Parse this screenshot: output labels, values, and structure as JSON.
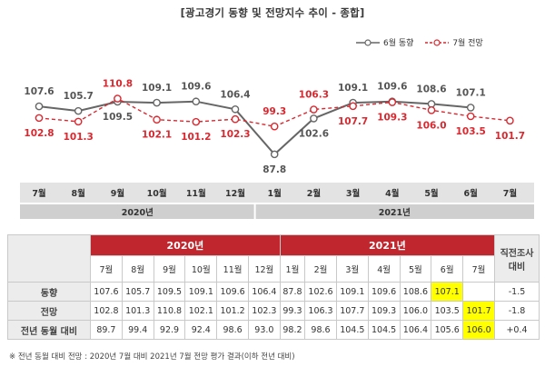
{
  "title": "[광고경기 동향 및 전망지수 추이 - 종합]",
  "legend": {
    "actual": "6월 동향",
    "forecast": "7월 전망",
    "actual_color": "#666666",
    "forecast_color": "#d9282f"
  },
  "chart_data": {
    "type": "line",
    "categories": [
      "7월",
      "8월",
      "9월",
      "10월",
      "11월",
      "12월",
      "1월",
      "2월",
      "3월",
      "4월",
      "5월",
      "6월",
      "7월"
    ],
    "year_groups": [
      {
        "label": "2020년",
        "span": 6
      },
      {
        "label": "2021년",
        "span": 7
      }
    ],
    "series": [
      {
        "name": "6월 동향",
        "color": "#666666",
        "style": "solid",
        "values": [
          107.6,
          105.7,
          109.5,
          109.1,
          109.6,
          106.4,
          87.8,
          102.6,
          109.1,
          109.6,
          108.6,
          107.1,
          null
        ]
      },
      {
        "name": "7월 전망",
        "color": "#d9282f",
        "style": "dashed",
        "values": [
          102.8,
          101.3,
          110.8,
          102.1,
          101.2,
          102.3,
          99.3,
          106.3,
          107.7,
          109.3,
          106.0,
          103.5,
          101.7
        ]
      }
    ],
    "labels_above": [
      [
        true,
        true,
        false,
        true,
        true,
        true,
        false,
        false,
        true,
        true,
        true,
        true,
        false
      ],
      [
        false,
        false,
        true,
        false,
        false,
        false,
        true,
        true,
        false,
        false,
        false,
        false,
        false
      ]
    ],
    "ylim": [
      84,
      114
    ],
    "grid": false,
    "legend_position": "top-right"
  },
  "table": {
    "years": [
      "2020년",
      "2021년"
    ],
    "side_header": "직전조사 대비",
    "months": [
      "7월",
      "8월",
      "9월",
      "10월",
      "11월",
      "12월",
      "1월",
      "2월",
      "3월",
      "4월",
      "5월",
      "6월",
      "7월"
    ],
    "rows": [
      {
        "label": "동향",
        "values": [
          "107.6",
          "105.7",
          "109.5",
          "109.1",
          "109.6",
          "106.4",
          "87.8",
          "102.6",
          "109.1",
          "109.6",
          "108.6",
          "107.1",
          ""
        ],
        "highlight": 11,
        "diff": "-1.5"
      },
      {
        "label": "전망",
        "values": [
          "102.8",
          "101.3",
          "110.8",
          "102.1",
          "101.2",
          "102.3",
          "99.3",
          "106.3",
          "107.7",
          "109.3",
          "106.0",
          "103.5",
          "101.7"
        ],
        "highlight": 12,
        "diff": "-1.8"
      },
      {
        "label": "전년 동월 대비",
        "values": [
          "89.7",
          "99.4",
          "92.9",
          "92.4",
          "98.6",
          "93.0",
          "98.2",
          "98.6",
          "104.5",
          "104.5",
          "106.4",
          "105.6",
          "106.0"
        ],
        "highlight": 12,
        "diff": "+0.4"
      }
    ]
  },
  "note": "※ 전년 동월 대비 전망 : 2020년 7월 대비 2021년 7월 전망 평가 결과(이하 전년 대비)"
}
